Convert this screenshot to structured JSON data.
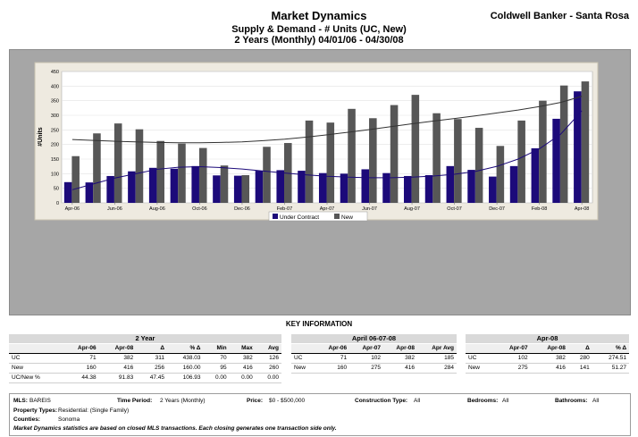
{
  "header": {
    "title": "Market Dynamics",
    "subtitle1": "Supply & Demand - # Units (UC, New)",
    "subtitle2": "2 Years (Monthly) 04/01/06 - 04/30/08",
    "brand": "Coldwell Banker - Santa Rosa"
  },
  "chart_data": {
    "type": "bar",
    "ylabel": "#Units",
    "ylim": [
      0,
      450
    ],
    "yticks": [
      0,
      50,
      100,
      150,
      200,
      250,
      300,
      350,
      400,
      450
    ],
    "grid": true,
    "legend_position": "bottom",
    "xtick_labels": [
      "Apr-06",
      "Jun-06",
      "Aug-06",
      "Oct-06",
      "Dec-06",
      "Feb-07",
      "Apr-07",
      "Jun-07",
      "Aug-07",
      "Oct-07",
      "Dec-07",
      "Feb-08",
      "Apr-08"
    ],
    "categories": [
      "Apr-06",
      "May-06",
      "Jun-06",
      "Jul-06",
      "Aug-06",
      "Sep-06",
      "Oct-06",
      "Nov-06",
      "Dec-06",
      "Jan-07",
      "Feb-07",
      "Mar-07",
      "Apr-07",
      "May-07",
      "Jun-07",
      "Jul-07",
      "Aug-07",
      "Sep-07",
      "Oct-07",
      "Nov-07",
      "Dec-07",
      "Jan-08",
      "Feb-08",
      "Mar-08",
      "Apr-08"
    ],
    "series": [
      {
        "name": "Under Contract",
        "color": "#1c0a7a",
        "values": [
          71,
          70,
          92,
          108,
          120,
          117,
          126,
          94,
          93,
          110,
          112,
          110,
          102,
          100,
          115,
          102,
          92,
          95,
          126,
          113,
          90,
          126,
          187,
          288,
          382
        ]
      },
      {
        "name": "New",
        "color": "#575757",
        "values": [
          160,
          238,
          272,
          252,
          212,
          203,
          188,
          128,
          95,
          192,
          205,
          282,
          275,
          322,
          290,
          335,
          370,
          307,
          287,
          257,
          195,
          282,
          350,
          402,
          416
        ]
      }
    ],
    "trendlines": [
      {
        "series": "Under Contract",
        "color": "#1c0a7a",
        "values": [
          45,
          65,
          85,
          100,
          115,
          122,
          124,
          121,
          116,
          109,
          102,
          96,
          91,
          88,
          86,
          86,
          88,
          92,
          98,
          108,
          125,
          150,
          185,
          235,
          315
        ]
      },
      {
        "series": "New",
        "color": "#333333",
        "values": [
          217,
          214,
          211,
          209,
          207,
          206,
          206,
          207,
          209,
          213,
          218,
          225,
          233,
          242,
          251,
          261,
          271,
          280,
          289,
          298,
          308,
          318,
          330,
          344,
          365
        ]
      }
    ]
  },
  "key_info": {
    "title": "KEY INFORMATION",
    "two_year": {
      "heading": "2 Year",
      "columns": [
        "",
        "Apr-06",
        "Apr-08",
        "Δ",
        "% Δ",
        "Min",
        "Max",
        "Avg"
      ],
      "rows": [
        [
          "UC",
          "71",
          "382",
          "311",
          "438.03",
          "70",
          "382",
          "126"
        ],
        [
          "New",
          "160",
          "416",
          "256",
          "160.00",
          "95",
          "416",
          "260"
        ],
        [
          "UC/New %",
          "44.38",
          "91.83",
          "47.45",
          "106.93",
          "0.00",
          "0.00",
          "0.00"
        ]
      ]
    },
    "april": {
      "heading": "April 06-07-08",
      "columns": [
        "",
        "Apr-06",
        "Apr-07",
        "Apr-08",
        "Apr Avg"
      ],
      "rows": [
        [
          "UC",
          "71",
          "102",
          "382",
          "185"
        ],
        [
          "New",
          "160",
          "275",
          "416",
          "284"
        ]
      ]
    },
    "apr08": {
      "heading": "Apr-08",
      "columns": [
        "",
        "Apr-07",
        "Apr-08",
        "Δ",
        "% Δ"
      ],
      "rows": [
        [
          "UC",
          "102",
          "382",
          "280",
          "274.51"
        ],
        [
          "New",
          "275",
          "416",
          "141",
          "51.27"
        ]
      ]
    }
  },
  "criteria": {
    "mls_label": "MLS:",
    "mls_value": "BAREIS",
    "period_label": "Time Period:",
    "period_value": "2 Years (Monthly)",
    "price_label": "Price:",
    "price_value": "$0 - $500,000",
    "construction_label": "Construction Type:",
    "construction_value": "All",
    "bedrooms_label": "Bedrooms:",
    "bedrooms_value": "All",
    "bathrooms_label": "Bathrooms:",
    "bathrooms_value": "All",
    "property_label": "Property Types:",
    "property_value": "Residential: (Single Family)",
    "counties_label": "Counties:",
    "counties_value": "Sonoma",
    "note": "Market Dynamics statistics are based on closed MLS transactions.  Each closing generates one transaction side only."
  }
}
